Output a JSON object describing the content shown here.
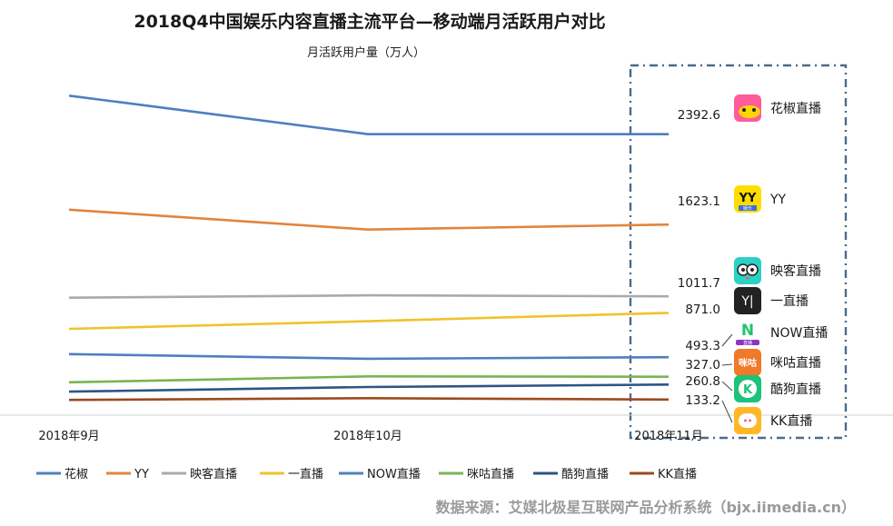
{
  "chart_data": {
    "type": "line",
    "title": "2018Q4中国娱乐内容直播主流平台—移动端月活跃用户对比",
    "ylabel": "月活跃用户量（万人）",
    "categories": [
      "2018年9月",
      "2018年10月",
      "2018年11月"
    ],
    "ylim": [
      0,
      2800
    ],
    "grid": false,
    "legend_position": "bottom",
    "series": [
      {
        "name": "花椒",
        "values": [
          2720,
          2392.6,
          2392.6
        ],
        "color": "#4f7fbf",
        "label": "2392.6",
        "app_name": "花椒直播",
        "icon": "huajiao-icon"
      },
      {
        "name": "YY",
        "values": [
          1750,
          1580,
          1623.1
        ],
        "color": "#e0843e",
        "label": "1623.1",
        "app_name": "YY",
        "icon": "yy-icon"
      },
      {
        "name": "映客直播",
        "values": [
          1000,
          1020,
          1011.7
        ],
        "color": "#aaaaaa",
        "label": "1011.7",
        "app_name": "映客直播",
        "icon": "yingke-icon"
      },
      {
        "name": "一直播",
        "values": [
          735,
          800,
          871.0
        ],
        "color": "#f2c12e",
        "label": "871.0",
        "app_name": "一直播",
        "icon": "yizhibo-icon"
      },
      {
        "name": "NOW直播",
        "values": [
          520,
          480,
          493.3
        ],
        "color": "#4f7fbf",
        "label": "493.3",
        "app_name": "NOW直播",
        "icon": "now-icon"
      },
      {
        "name": "咪咕直播",
        "values": [
          280,
          330,
          327.0
        ],
        "color": "#79b452",
        "label": "327.0",
        "app_name": "咪咕直播",
        "icon": "migu-icon"
      },
      {
        "name": "酷狗直播",
        "values": [
          200,
          240,
          260.8
        ],
        "color": "#2d5584",
        "label": "260.8",
        "app_name": "酷狗直播",
        "icon": "kugou-icon"
      },
      {
        "name": "KK直播",
        "values": [
          130,
          145,
          133.2
        ],
        "color": "#9c4a1e",
        "label": "133.2",
        "app_name": "KK直播",
        "icon": "kk-icon"
      }
    ]
  },
  "icon_badges": {
    "yy": {
      "text": "YY",
      "sub": "娱乐"
    },
    "yizhibo": {
      "text": "Y|"
    },
    "now": {
      "text": "N",
      "sub": "直播"
    },
    "migu": {
      "text": "咪咕"
    },
    "kugou": {
      "text": "K"
    },
    "kk": {
      "text": "••"
    }
  },
  "source": "数据来源：艾媒北极星互联网产品分析系统（bjx.iimedia.cn）",
  "colors": {
    "highlight_box": "#4a6b8c",
    "axis": "#d0d0d0"
  }
}
